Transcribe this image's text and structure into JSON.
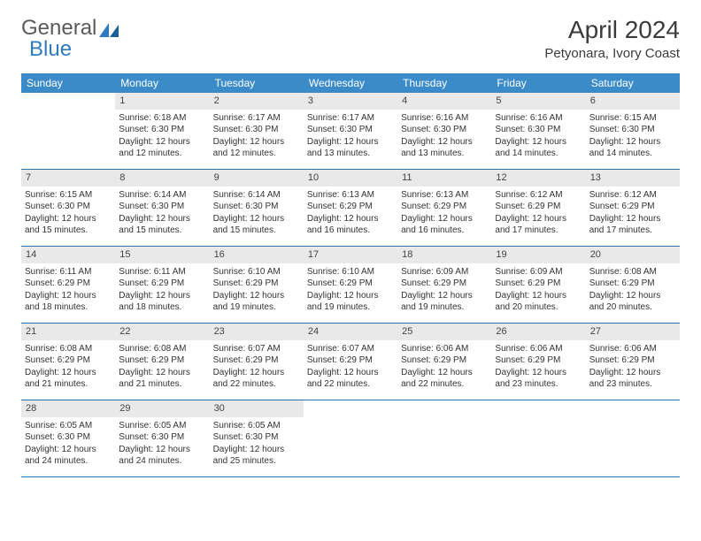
{
  "brand": {
    "part1": "General",
    "part2": "Blue"
  },
  "title": "April 2024",
  "subtitle": "Petyonara, Ivory Coast",
  "header_bg": "#3b8bc8",
  "header_fg": "#ffffff",
  "daynum_bg": "#e9e9e9",
  "rule_color": "#2f6fa8",
  "weekdays": [
    "Sunday",
    "Monday",
    "Tuesday",
    "Wednesday",
    "Thursday",
    "Friday",
    "Saturday"
  ],
  "weeks": [
    [
      {
        "n": "",
        "sr": "",
        "ss": "",
        "dl": ""
      },
      {
        "n": "1",
        "sr": "Sunrise: 6:18 AM",
        "ss": "Sunset: 6:30 PM",
        "dl": "Daylight: 12 hours and 12 minutes."
      },
      {
        "n": "2",
        "sr": "Sunrise: 6:17 AM",
        "ss": "Sunset: 6:30 PM",
        "dl": "Daylight: 12 hours and 12 minutes."
      },
      {
        "n": "3",
        "sr": "Sunrise: 6:17 AM",
        "ss": "Sunset: 6:30 PM",
        "dl": "Daylight: 12 hours and 13 minutes."
      },
      {
        "n": "4",
        "sr": "Sunrise: 6:16 AM",
        "ss": "Sunset: 6:30 PM",
        "dl": "Daylight: 12 hours and 13 minutes."
      },
      {
        "n": "5",
        "sr": "Sunrise: 6:16 AM",
        "ss": "Sunset: 6:30 PM",
        "dl": "Daylight: 12 hours and 14 minutes."
      },
      {
        "n": "6",
        "sr": "Sunrise: 6:15 AM",
        "ss": "Sunset: 6:30 PM",
        "dl": "Daylight: 12 hours and 14 minutes."
      }
    ],
    [
      {
        "n": "7",
        "sr": "Sunrise: 6:15 AM",
        "ss": "Sunset: 6:30 PM",
        "dl": "Daylight: 12 hours and 15 minutes."
      },
      {
        "n": "8",
        "sr": "Sunrise: 6:14 AM",
        "ss": "Sunset: 6:30 PM",
        "dl": "Daylight: 12 hours and 15 minutes."
      },
      {
        "n": "9",
        "sr": "Sunrise: 6:14 AM",
        "ss": "Sunset: 6:30 PM",
        "dl": "Daylight: 12 hours and 15 minutes."
      },
      {
        "n": "10",
        "sr": "Sunrise: 6:13 AM",
        "ss": "Sunset: 6:29 PM",
        "dl": "Daylight: 12 hours and 16 minutes."
      },
      {
        "n": "11",
        "sr": "Sunrise: 6:13 AM",
        "ss": "Sunset: 6:29 PM",
        "dl": "Daylight: 12 hours and 16 minutes."
      },
      {
        "n": "12",
        "sr": "Sunrise: 6:12 AM",
        "ss": "Sunset: 6:29 PM",
        "dl": "Daylight: 12 hours and 17 minutes."
      },
      {
        "n": "13",
        "sr": "Sunrise: 6:12 AM",
        "ss": "Sunset: 6:29 PM",
        "dl": "Daylight: 12 hours and 17 minutes."
      }
    ],
    [
      {
        "n": "14",
        "sr": "Sunrise: 6:11 AM",
        "ss": "Sunset: 6:29 PM",
        "dl": "Daylight: 12 hours and 18 minutes."
      },
      {
        "n": "15",
        "sr": "Sunrise: 6:11 AM",
        "ss": "Sunset: 6:29 PM",
        "dl": "Daylight: 12 hours and 18 minutes."
      },
      {
        "n": "16",
        "sr": "Sunrise: 6:10 AM",
        "ss": "Sunset: 6:29 PM",
        "dl": "Daylight: 12 hours and 19 minutes."
      },
      {
        "n": "17",
        "sr": "Sunrise: 6:10 AM",
        "ss": "Sunset: 6:29 PM",
        "dl": "Daylight: 12 hours and 19 minutes."
      },
      {
        "n": "18",
        "sr": "Sunrise: 6:09 AM",
        "ss": "Sunset: 6:29 PM",
        "dl": "Daylight: 12 hours and 19 minutes."
      },
      {
        "n": "19",
        "sr": "Sunrise: 6:09 AM",
        "ss": "Sunset: 6:29 PM",
        "dl": "Daylight: 12 hours and 20 minutes."
      },
      {
        "n": "20",
        "sr": "Sunrise: 6:08 AM",
        "ss": "Sunset: 6:29 PM",
        "dl": "Daylight: 12 hours and 20 minutes."
      }
    ],
    [
      {
        "n": "21",
        "sr": "Sunrise: 6:08 AM",
        "ss": "Sunset: 6:29 PM",
        "dl": "Daylight: 12 hours and 21 minutes."
      },
      {
        "n": "22",
        "sr": "Sunrise: 6:08 AM",
        "ss": "Sunset: 6:29 PM",
        "dl": "Daylight: 12 hours and 21 minutes."
      },
      {
        "n": "23",
        "sr": "Sunrise: 6:07 AM",
        "ss": "Sunset: 6:29 PM",
        "dl": "Daylight: 12 hours and 22 minutes."
      },
      {
        "n": "24",
        "sr": "Sunrise: 6:07 AM",
        "ss": "Sunset: 6:29 PM",
        "dl": "Daylight: 12 hours and 22 minutes."
      },
      {
        "n": "25",
        "sr": "Sunrise: 6:06 AM",
        "ss": "Sunset: 6:29 PM",
        "dl": "Daylight: 12 hours and 22 minutes."
      },
      {
        "n": "26",
        "sr": "Sunrise: 6:06 AM",
        "ss": "Sunset: 6:29 PM",
        "dl": "Daylight: 12 hours and 23 minutes."
      },
      {
        "n": "27",
        "sr": "Sunrise: 6:06 AM",
        "ss": "Sunset: 6:29 PM",
        "dl": "Daylight: 12 hours and 23 minutes."
      }
    ],
    [
      {
        "n": "28",
        "sr": "Sunrise: 6:05 AM",
        "ss": "Sunset: 6:30 PM",
        "dl": "Daylight: 12 hours and 24 minutes."
      },
      {
        "n": "29",
        "sr": "Sunrise: 6:05 AM",
        "ss": "Sunset: 6:30 PM",
        "dl": "Daylight: 12 hours and 24 minutes."
      },
      {
        "n": "30",
        "sr": "Sunrise: 6:05 AM",
        "ss": "Sunset: 6:30 PM",
        "dl": "Daylight: 12 hours and 25 minutes."
      },
      {
        "n": "",
        "sr": "",
        "ss": "",
        "dl": ""
      },
      {
        "n": "",
        "sr": "",
        "ss": "",
        "dl": ""
      },
      {
        "n": "",
        "sr": "",
        "ss": "",
        "dl": ""
      },
      {
        "n": "",
        "sr": "",
        "ss": "",
        "dl": ""
      }
    ]
  ]
}
